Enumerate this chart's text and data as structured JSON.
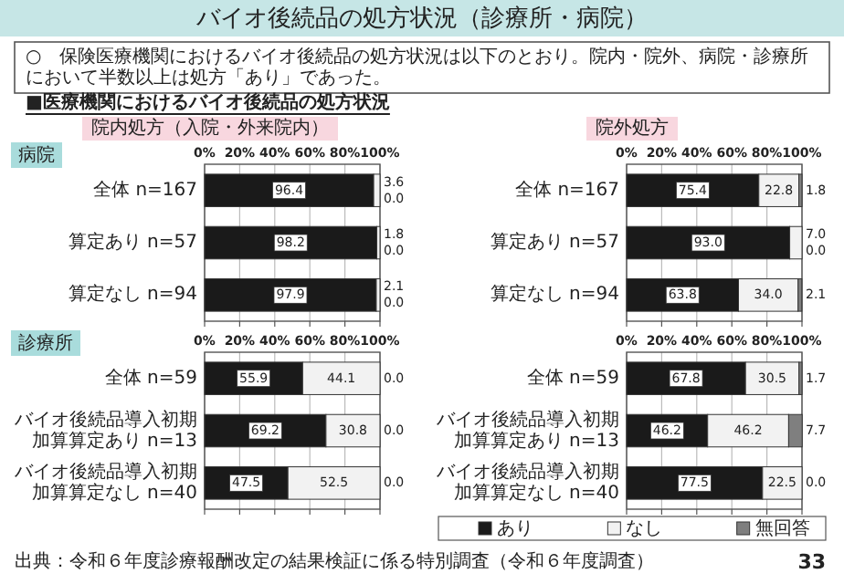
{
  "chart_data": [
    {
      "type": "other",
      "title": "バイオ後続品の処方状況（診療所・病院）",
      "subtitle": "○　保険医療機関におけるバイオ後続品の処方状況は以下のとおり。院内・院外、病院・診療所において半数以上は処方「あり」であった。",
      "annotations": [
        "■医療機関におけるバイオ後続品の処方状況",
        "出典：令和６年度診療報酬改定の結果検証に係る特別調査（令和６年度調査）",
        "33"
      ]
    },
    {
      "type": "bar",
      "orientation": "horizontal",
      "stacked": true,
      "title": "院内処方（入院・外来院内）",
      "subtitle": "病院",
      "categories": [
        "全体 n=167",
        "算定あり n=57",
        "算定なし n=94"
      ],
      "xlim": [
        0,
        100
      ],
      "xticks": [
        {
          "value": 0,
          "label": "0%"
        },
        {
          "value": 20,
          "label": "20%"
        },
        {
          "value": 40,
          "label": "40%"
        },
        {
          "value": 60,
          "label": "60%"
        },
        {
          "value": 80,
          "label": "80%"
        },
        {
          "value": 100,
          "label": "100%"
        }
      ],
      "grid": "x",
      "series": [
        {
          "color": "#1a1a1a",
          "values": [
            96.4,
            98.2,
            97.9
          ],
          "value_labels": [
            "96.4",
            "98.2",
            "97.9"
          ]
        },
        {
          "color": "#f2f2f2",
          "values": [
            3.6,
            1.8,
            2.1
          ],
          "value_labels": [
            "3.6",
            "1.8",
            "2.1"
          ]
        },
        {
          "color": "#7f7f7f",
          "values": [
            0.0,
            0.0,
            0.0
          ],
          "value_labels": [
            "0.0",
            "0.0",
            "0.0"
          ]
        }
      ]
    },
    {
      "type": "bar",
      "orientation": "horizontal",
      "stacked": true,
      "title": "院外処方",
      "categories": [
        "全体 n=167",
        "算定あり n=57",
        "算定なし n=94"
      ],
      "xlim": [
        0,
        100
      ],
      "xticks": [
        {
          "value": 0,
          "label": "0%"
        },
        {
          "value": 20,
          "label": "20%"
        },
        {
          "value": 40,
          "label": "40%"
        },
        {
          "value": 60,
          "label": "60%"
        },
        {
          "value": 80,
          "label": "80%"
        },
        {
          "value": 100,
          "label": "100%"
        }
      ],
      "grid": "x",
      "series": [
        {
          "color": "#1a1a1a",
          "values": [
            75.4,
            93.0,
            63.8
          ],
          "value_labels": [
            "75.4",
            "93.0",
            "63.8"
          ]
        },
        {
          "color": "#f2f2f2",
          "values": [
            22.8,
            7.0,
            34.0
          ],
          "value_labels": [
            "22.8",
            "7.0",
            "34.0"
          ]
        },
        {
          "color": "#7f7f7f",
          "values": [
            1.8,
            0.0,
            2.1
          ],
          "value_labels": [
            "1.8",
            "0.0",
            "2.1"
          ]
        }
      ]
    },
    {
      "type": "bar",
      "orientation": "horizontal",
      "stacked": true,
      "subtitle": "診療所",
      "categories": [
        "全体 n=59",
        "バイオ後続品導入初期加算算定あり n=13",
        "バイオ後続品導入初期加算算定なし n=40"
      ],
      "xlim": [
        0,
        100
      ],
      "xticks": [
        {
          "value": 0,
          "label": "0%"
        },
        {
          "value": 20,
          "label": "20%"
        },
        {
          "value": 40,
          "label": "40%"
        },
        {
          "value": 60,
          "label": "60%"
        },
        {
          "value": 80,
          "label": "80%"
        },
        {
          "value": 100,
          "label": "100%"
        }
      ],
      "grid": "x",
      "series": [
        {
          "color": "#1a1a1a",
          "values": [
            55.9,
            69.2,
            47.5
          ],
          "value_labels": [
            "55.9",
            "69.2",
            "47.5"
          ]
        },
        {
          "color": "#f2f2f2",
          "values": [
            44.1,
            30.8,
            52.5
          ],
          "value_labels": [
            "44.1",
            "30.8",
            "52.5"
          ]
        },
        {
          "color": "#7f7f7f",
          "values": [
            0.0,
            0.0,
            0.0
          ],
          "value_labels": [
            "0.0",
            "0.0",
            "0.0"
          ]
        }
      ]
    },
    {
      "type": "bar",
      "orientation": "horizontal",
      "stacked": true,
      "categories": [
        "全体 n=59",
        "バイオ後続品導入初期加算算定あり n=13",
        "バイオ後続品導入初期加算算定なし n=40"
      ],
      "xlim": [
        0,
        100
      ],
      "xticks": [
        {
          "value": 0,
          "label": "0%"
        },
        {
          "value": 20,
          "label": "20%"
        },
        {
          "value": 40,
          "label": "40%"
        },
        {
          "value": 60,
          "label": "60%"
        },
        {
          "value": 80,
          "label": "80%"
        },
        {
          "value": 100,
          "label": "100%"
        }
      ],
      "grid": "x",
      "legend": "bottom",
      "series": [
        {
          "name": "あり",
          "color": "#1a1a1a",
          "values": [
            67.8,
            46.2,
            77.5
          ],
          "value_labels": [
            "67.8",
            "46.2",
            "77.5"
          ]
        },
        {
          "name": "なし",
          "color": "#f2f2f2",
          "values": [
            30.5,
            46.2,
            22.5
          ],
          "value_labels": [
            "30.5",
            "46.2",
            "22.5"
          ]
        },
        {
          "name": "無回答",
          "color": "#7f7f7f",
          "values": [
            1.7,
            7.7,
            0.0
          ],
          "value_labels": [
            "1.7",
            "7.7",
            "0.0"
          ]
        }
      ]
    }
  ]
}
